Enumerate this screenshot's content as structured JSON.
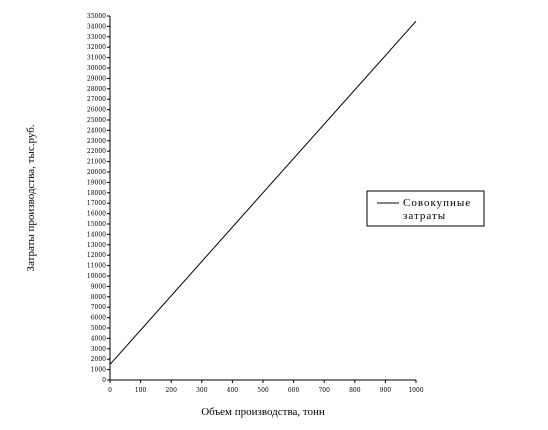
{
  "chart_data": {
    "type": "line",
    "xlabel": "Объем производства, тонн",
    "ylabel": "Затраты производства, тыс.руб.",
    "xlim": [
      0,
      1000
    ],
    "ylim": [
      0,
      35000
    ],
    "x_ticks": [
      "0",
      "100",
      "200",
      "300",
      "400",
      "500",
      "600",
      "700",
      "800",
      "900",
      "1000"
    ],
    "y_ticks": [
      "0",
      "1000",
      "2000",
      "3000",
      "4000",
      "5000",
      "6000",
      "7000",
      "8000",
      "9000",
      "10000",
      "11000",
      "12000",
      "13000",
      "14000",
      "15000",
      "16000",
      "17000",
      "18000",
      "19000",
      "20000",
      "21000",
      "22000",
      "23000",
      "24000",
      "25000",
      "26000",
      "27000",
      "28000",
      "29000",
      "30000",
      "31000",
      "32000",
      "33000",
      "34000",
      "35000"
    ],
    "grid": false,
    "legend": "right",
    "series": [
      {
        "name": "Совокупные затраты",
        "color": "#000000",
        "x": [
          0,
          1000
        ],
        "y": [
          1500,
          34500
        ]
      }
    ]
  }
}
